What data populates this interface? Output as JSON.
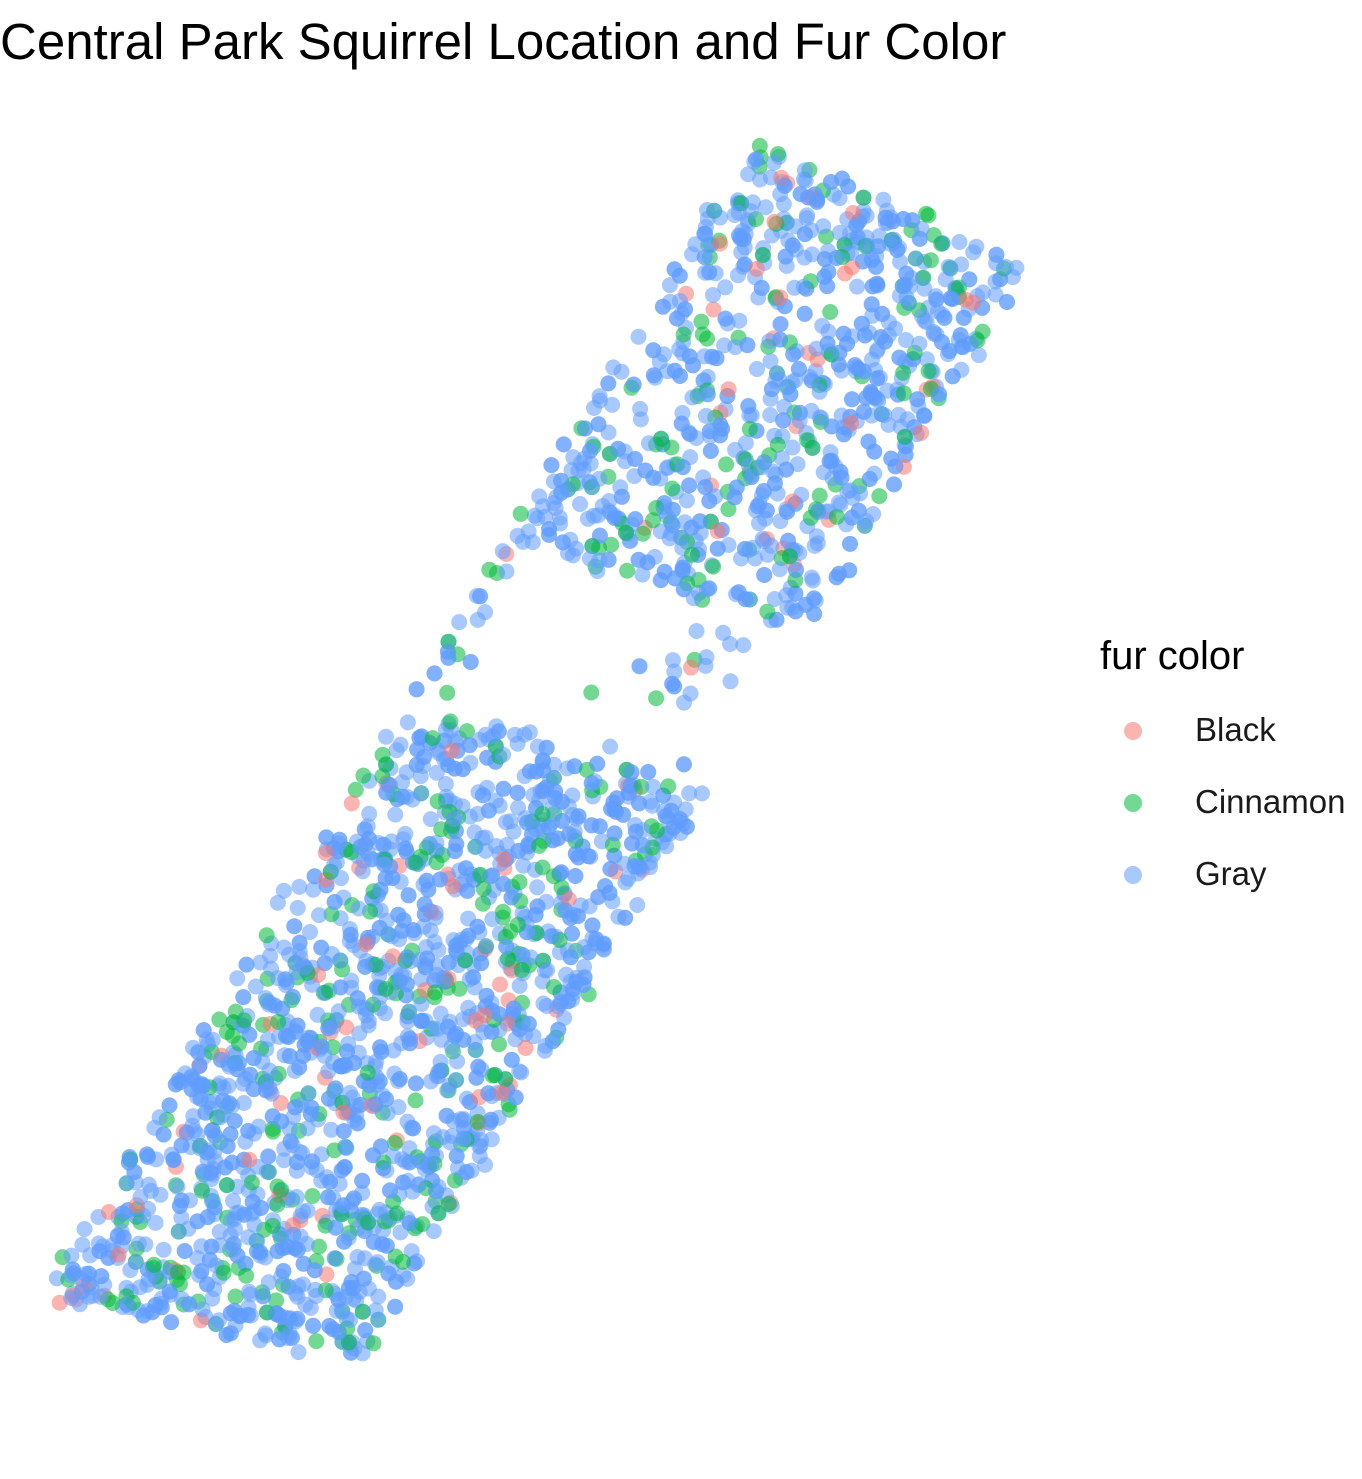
{
  "chart_data": {
    "type": "scatter",
    "title": "Central Park Squirrel Location and Fur Color",
    "xlabel": "",
    "ylabel": "",
    "axes_visible": false,
    "grid": false,
    "legend_placement": "right",
    "legend_title": "fur color",
    "series": [
      {
        "name": "Black",
        "color": "#F8766D",
        "opacity": 0.55,
        "count": 103
      },
      {
        "name": "Cinnamon",
        "color": "#00BA38",
        "opacity": 0.55,
        "count": 392
      },
      {
        "name": "Gray",
        "color": "#619CFF",
        "opacity": 0.55,
        "count": 2473
      }
    ],
    "xlim": [
      -73.982,
      -73.949
    ],
    "ylim": [
      40.764,
      40.801
    ],
    "note_data_density": "points distributed along the diagonal extent of Central Park, denser in the south-west half, sparse near the reservoir gap"
  }
}
